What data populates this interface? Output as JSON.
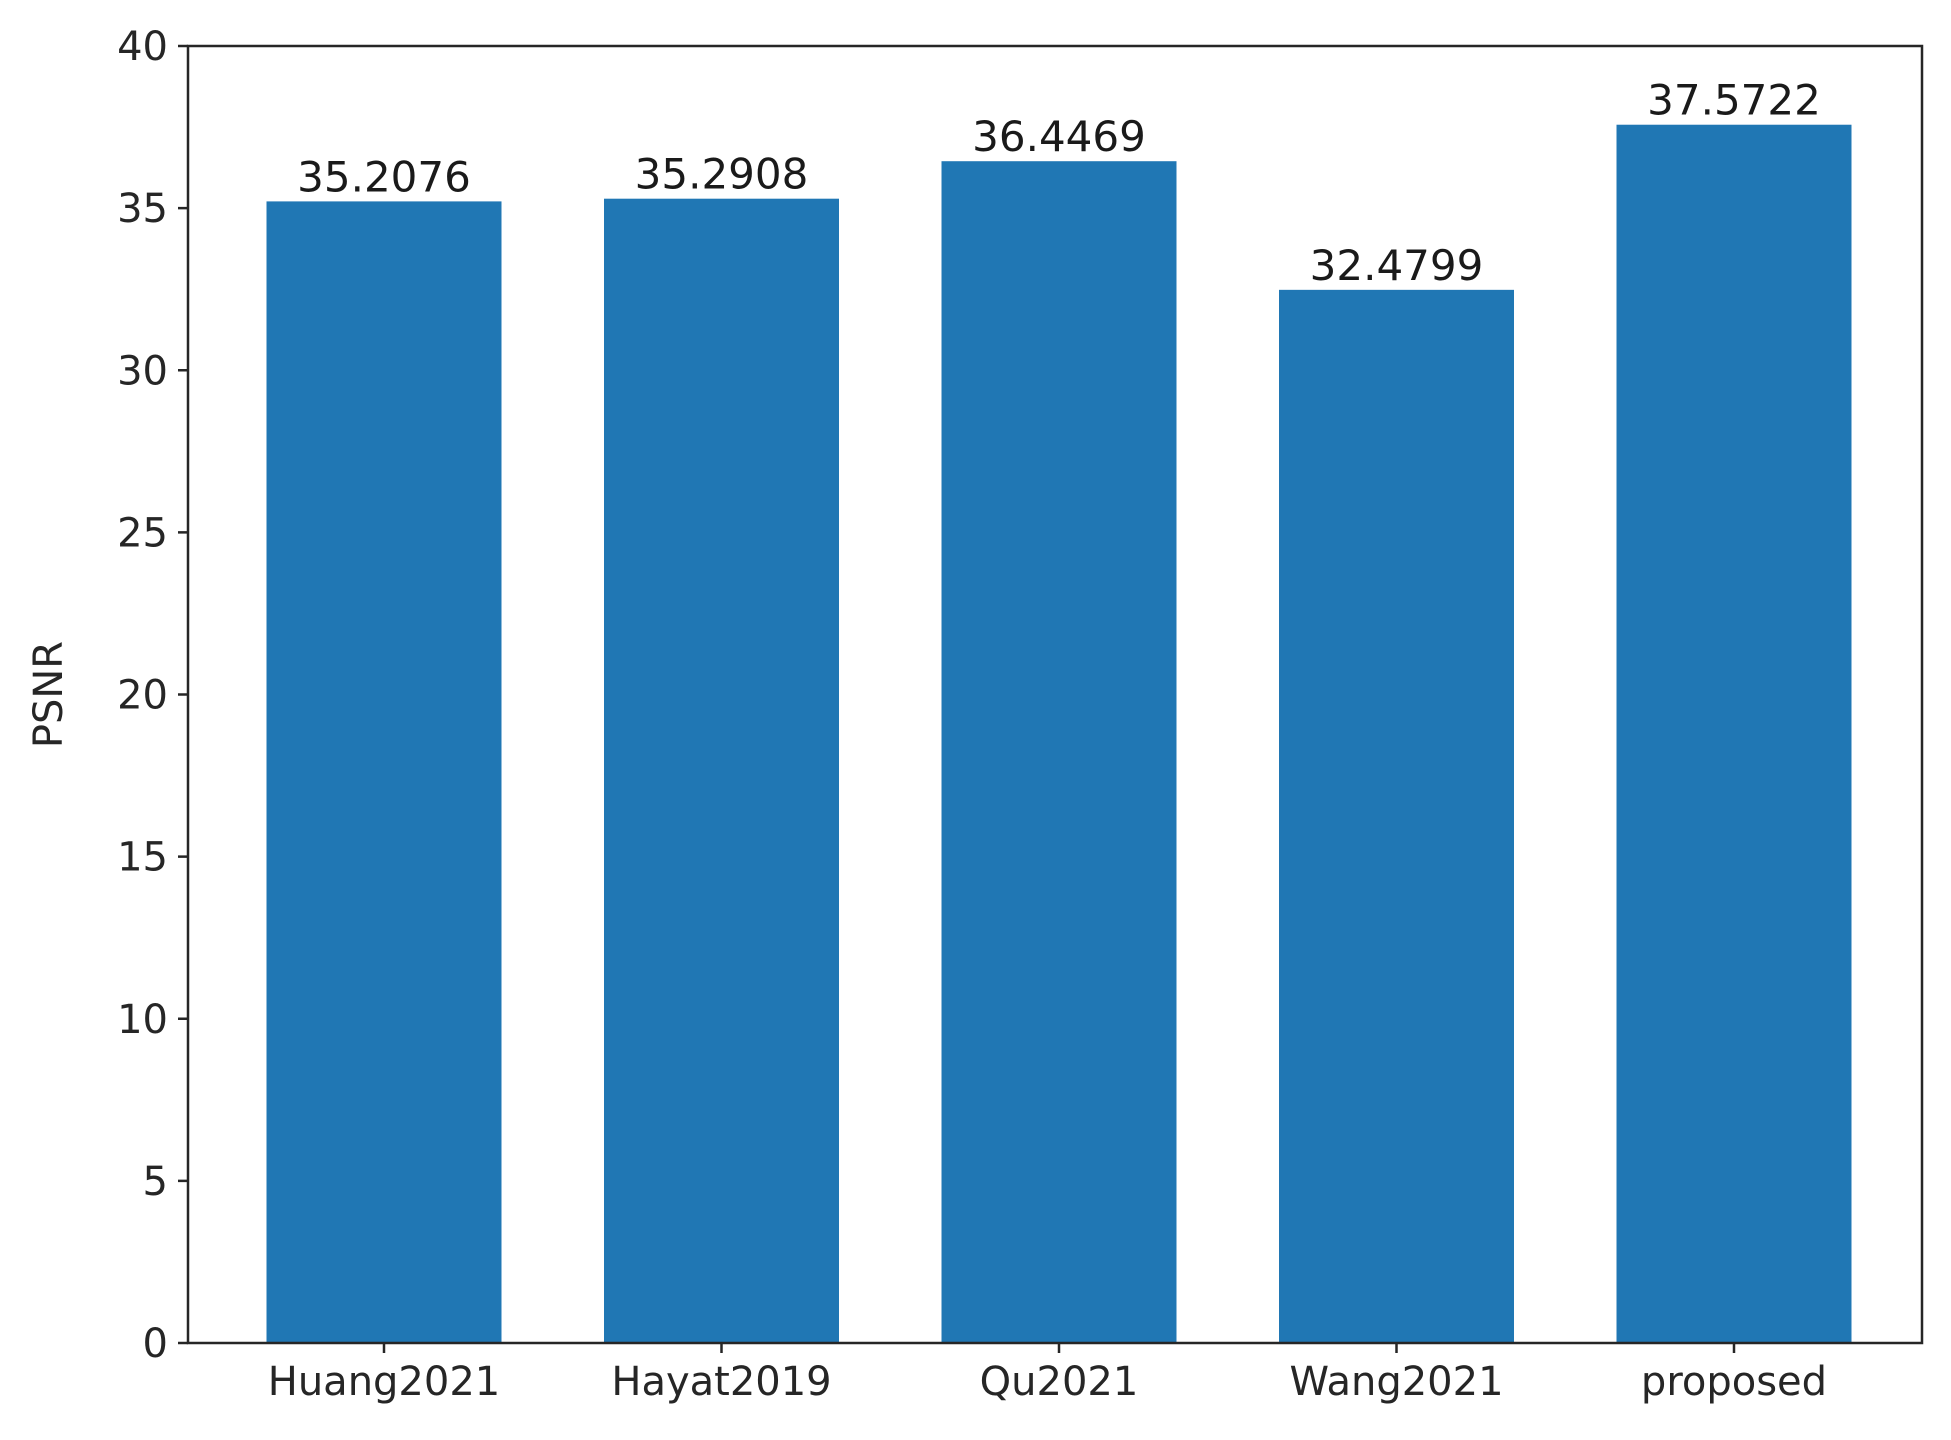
{
  "chart_data": {
    "type": "bar",
    "categories": [
      "Huang2021",
      "Hayat2019",
      "Qu2021",
      "Wang2021",
      "proposed"
    ],
    "values": [
      35.2076,
      35.2908,
      36.4469,
      32.4799,
      37.5722
    ],
    "value_labels": [
      "35.2076",
      "35.2908",
      "36.4469",
      "32.4799",
      "37.5722"
    ],
    "title": "",
    "xlabel": "",
    "ylabel": "PSNR",
    "ylim": [
      0,
      40
    ],
    "yticks": [
      0,
      5,
      10,
      15,
      20,
      25,
      30,
      35,
      40
    ],
    "grid": false,
    "bar_color": "#2077b4"
  }
}
